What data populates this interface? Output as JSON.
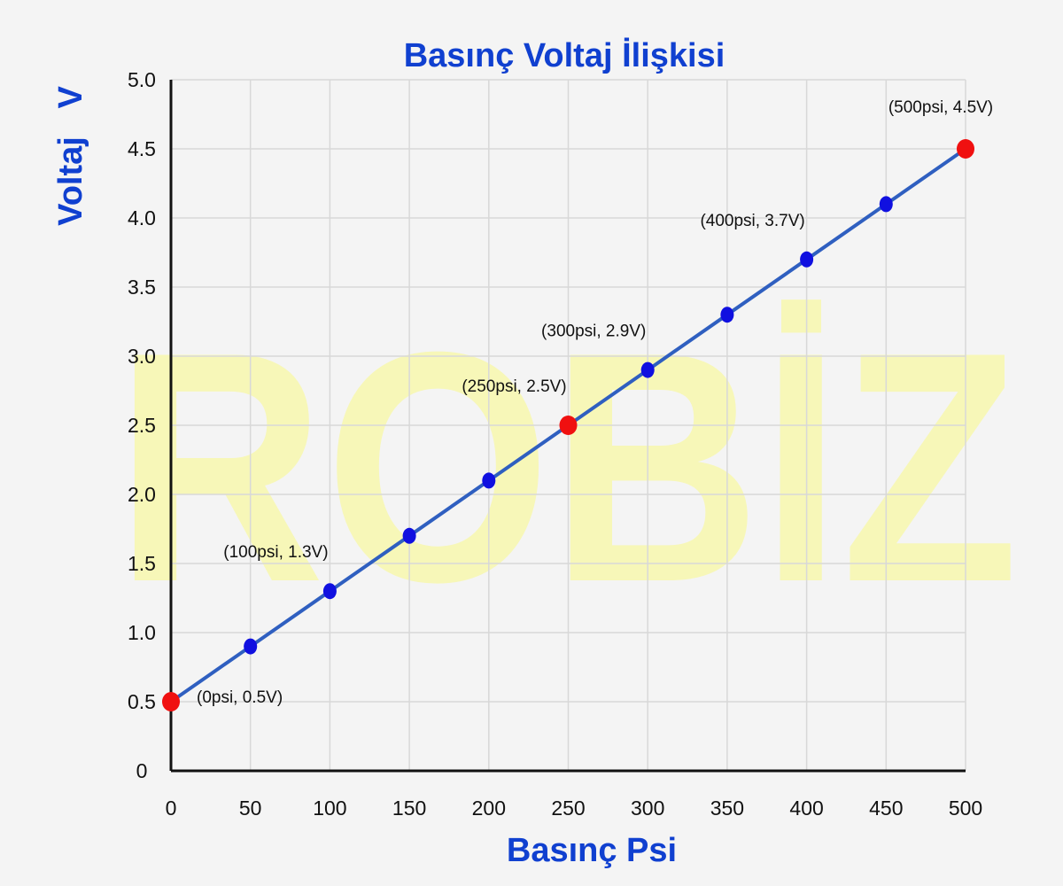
{
  "watermark": "ROBİZ",
  "chart_data": {
    "type": "line",
    "title": "Basınç Voltaj İlişkisi",
    "xlabel": "Basınç Psi",
    "ylabel": "Voltaj   V",
    "xlim": [
      0,
      500
    ],
    "ylim": [
      0,
      5.0
    ],
    "x_ticks": [
      "0",
      "50",
      "100",
      "150",
      "200",
      "250",
      "300",
      "350",
      "400",
      "450",
      "500"
    ],
    "y_ticks": [
      "0",
      "0.5",
      "1.0",
      "1.5",
      "2.0",
      "2.5",
      "3.0",
      "3.5",
      "4.0",
      "4.5",
      "5.0"
    ],
    "grid": true,
    "series": [
      {
        "x": [
          0,
          50,
          100,
          150,
          200,
          250,
          300,
          350,
          400,
          450,
          500
        ],
        "y": [
          0.5,
          0.9,
          1.3,
          1.7,
          2.1,
          2.5,
          2.9,
          3.3,
          3.7,
          4.1,
          4.5
        ],
        "highlighted": [
          0,
          250,
          500
        ]
      }
    ],
    "annotations": [
      {
        "text": "(0psi, 0.5V)",
        "x": 0,
        "y": 0.5,
        "placement": "right"
      },
      {
        "text": "(100psi, 1.3V)",
        "x": 100,
        "y": 1.3,
        "placement": "above"
      },
      {
        "text": "(250psi, 2.5V)",
        "x": 250,
        "y": 2.5,
        "placement": "above"
      },
      {
        "text": "(300psi, 2.9V)",
        "x": 300,
        "y": 2.9,
        "placement": "above"
      },
      {
        "text": "(400psi, 3.7V)",
        "x": 400,
        "y": 3.7,
        "placement": "above"
      },
      {
        "text": "(500psi, 4.5V)",
        "x": 500,
        "y": 4.5,
        "placement": "above"
      }
    ],
    "colors": {
      "line": "#2f5fc0",
      "point": "#1010e0",
      "highlight_point": "#f01010",
      "title": "#1040d0",
      "axis_label": "#1040d0",
      "grid": "#d8d8d8",
      "axis": "#111111",
      "watermark": "#f7f7b8"
    }
  }
}
